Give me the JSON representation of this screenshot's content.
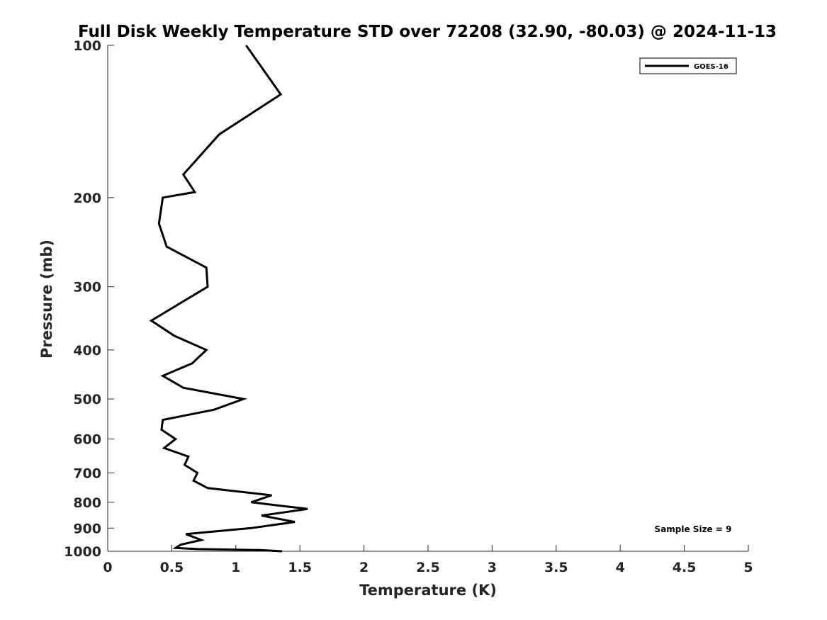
{
  "chart_data": {
    "type": "line",
    "title": "Full Disk Weekly Temperature STD over 72208 (32.90, -80.03) @ 2024-11-13",
    "xlabel": "Temperature (K)",
    "ylabel": "Pressure (mb)",
    "xlim": [
      0,
      5
    ],
    "ylim": [
      100,
      1000
    ],
    "yscale": "log",
    "y_reversed": true,
    "xticks": [
      "0",
      "0.5",
      "1",
      "1.5",
      "2",
      "2.5",
      "3",
      "3.5",
      "4",
      "4.5",
      "5"
    ],
    "yticks": [
      "100",
      "200",
      "300",
      "400",
      "500",
      "600",
      "700",
      "800",
      "900",
      "1000"
    ],
    "legend_position": "top-right",
    "grid": false,
    "series": [
      {
        "name": "GOES-16",
        "color": "#000000",
        "points": [
          [
            1.08,
            100
          ],
          [
            1.35,
            125
          ],
          [
            0.87,
            150
          ],
          [
            0.59,
            180
          ],
          [
            0.68,
            195
          ],
          [
            0.43,
            200
          ],
          [
            0.4,
            225
          ],
          [
            0.46,
            250
          ],
          [
            0.77,
            275
          ],
          [
            0.78,
            300
          ],
          [
            0.34,
            350
          ],
          [
            0.52,
            375
          ],
          [
            0.77,
            400
          ],
          [
            0.66,
            425
          ],
          [
            0.43,
            450
          ],
          [
            0.59,
            475
          ],
          [
            1.06,
            500
          ],
          [
            0.83,
            525
          ],
          [
            0.43,
            550
          ],
          [
            0.42,
            575
          ],
          [
            0.53,
            600
          ],
          [
            0.44,
            625
          ],
          [
            0.63,
            650
          ],
          [
            0.6,
            675
          ],
          [
            0.7,
            700
          ],
          [
            0.67,
            725
          ],
          [
            0.78,
            750
          ],
          [
            1.28,
            775
          ],
          [
            1.12,
            800
          ],
          [
            1.56,
            825
          ],
          [
            1.2,
            850
          ],
          [
            1.46,
            875
          ],
          [
            1.12,
            900
          ],
          [
            0.61,
            925
          ],
          [
            0.73,
            950
          ],
          [
            0.57,
            970
          ],
          [
            0.53,
            985
          ],
          [
            0.7,
            990
          ],
          [
            1.2,
            995
          ],
          [
            1.36,
            1000
          ]
        ]
      }
    ],
    "annotations": [
      {
        "text": "Sample Size = 9"
      }
    ]
  }
}
